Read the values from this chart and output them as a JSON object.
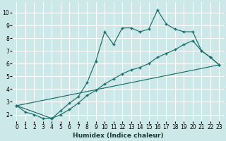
{
  "xlabel": "Humidex (Indice chaleur)",
  "background_color": "#cce8e8",
  "grid_color": "#ffffff",
  "line_color": "#1a6e6a",
  "xlim": [
    -0.5,
    23.5
  ],
  "ylim": [
    1.5,
    10.8
  ],
  "xticks": [
    0,
    1,
    2,
    3,
    4,
    5,
    6,
    7,
    8,
    9,
    10,
    11,
    12,
    13,
    14,
    15,
    16,
    17,
    18,
    19,
    20,
    21,
    22,
    23
  ],
  "yticks": [
    2,
    3,
    4,
    5,
    6,
    7,
    8,
    9,
    10
  ],
  "series1_x": [
    0,
    1,
    2,
    3,
    4,
    5,
    6,
    7,
    8,
    9,
    10,
    11,
    12,
    13,
    14,
    15,
    16,
    17,
    18,
    19,
    20,
    21,
    22,
    23
  ],
  "series1_y": [
    2.7,
    2.2,
    2.0,
    1.7,
    1.7,
    2.3,
    2.9,
    3.4,
    4.5,
    6.2,
    8.5,
    7.5,
    8.8,
    8.8,
    8.5,
    8.7,
    10.2,
    9.1,
    8.7,
    8.5,
    8.5,
    7.0,
    6.5,
    5.9
  ],
  "series2_x": [
    0,
    4,
    5,
    6,
    7,
    8,
    9,
    10,
    11,
    12,
    13,
    14,
    15,
    16,
    17,
    18,
    19,
    20,
    21,
    22,
    23
  ],
  "series2_y": [
    2.7,
    1.7,
    2.0,
    2.4,
    2.9,
    3.5,
    3.9,
    4.4,
    4.8,
    5.2,
    5.5,
    5.7,
    6.0,
    6.5,
    6.8,
    7.1,
    7.5,
    7.8,
    7.0,
    6.5,
    5.9
  ],
  "series3_x": [
    0,
    23
  ],
  "series3_y": [
    2.7,
    5.9
  ]
}
